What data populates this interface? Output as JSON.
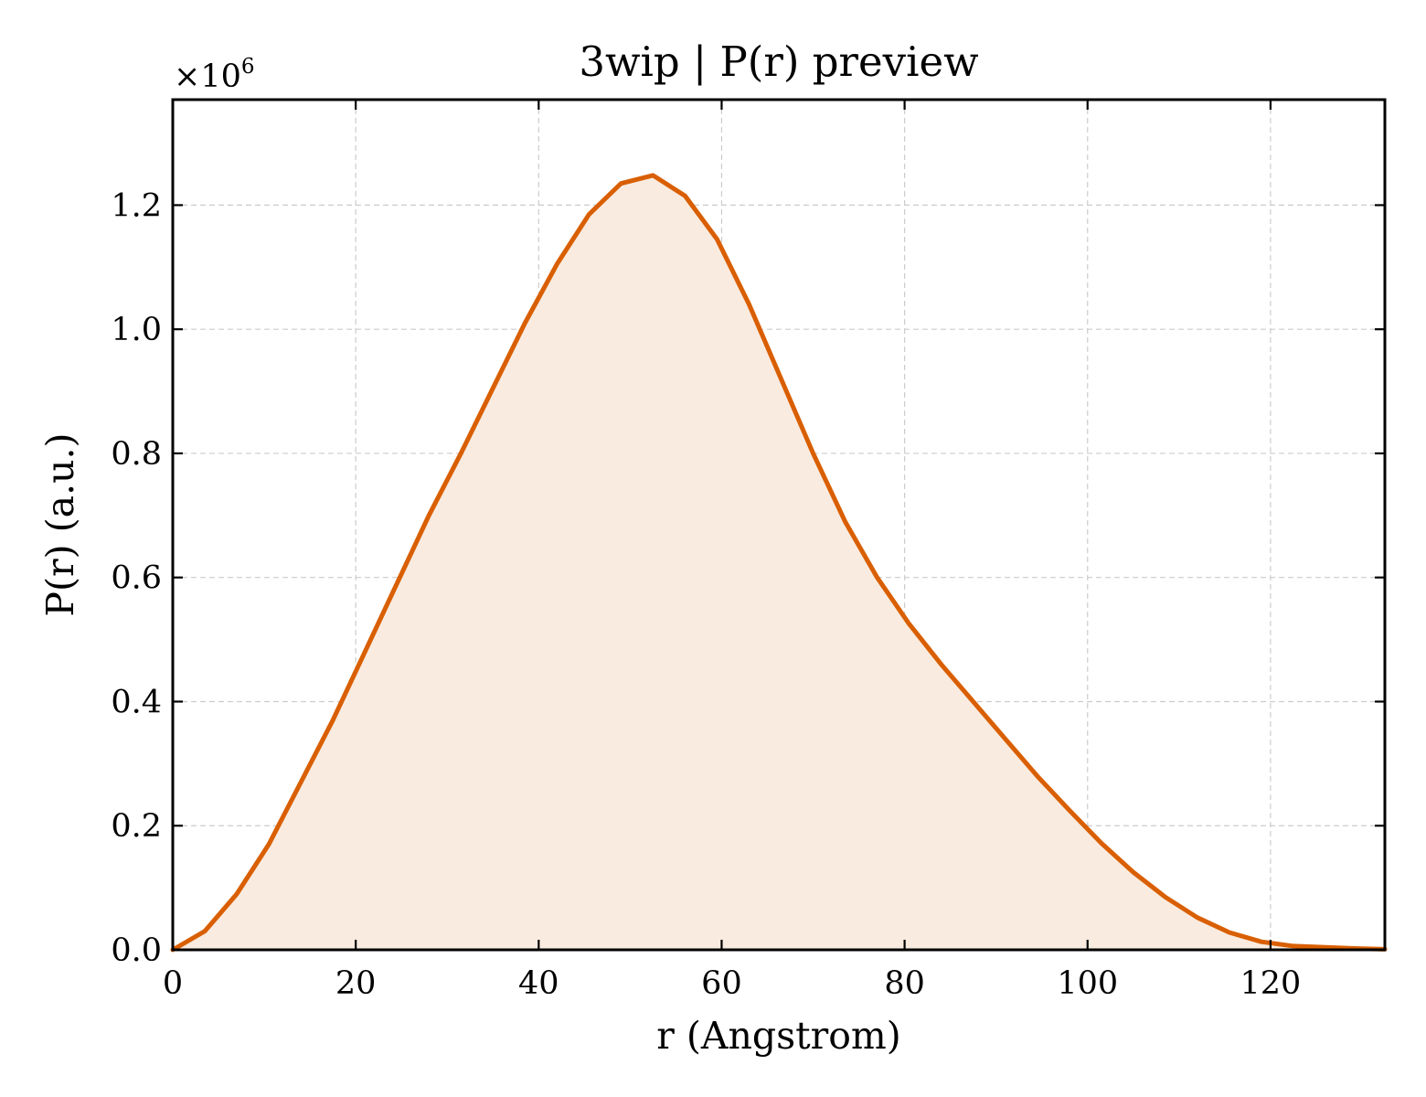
{
  "chart_data": {
    "type": "area",
    "title": "3wip | P(r) preview",
    "xlabel": "r (Angstrom)",
    "ylabel": "P(r) (a.u.)",
    "y_offset_label": {
      "base": "×10",
      "exponent": "6"
    },
    "xlim": [
      0,
      132.5
    ],
    "ylim": [
      0,
      1.37
    ],
    "y_scale_factor": 1000000,
    "x_ticks": [
      0,
      20,
      40,
      60,
      80,
      100,
      120
    ],
    "x_tick_labels": [
      "0",
      "20",
      "40",
      "60",
      "80",
      "100",
      "120"
    ],
    "y_ticks": [
      0.0,
      0.2,
      0.4,
      0.6,
      0.8,
      1.0,
      1.2
    ],
    "y_tick_labels": [
      "0.0",
      "0.2",
      "0.4",
      "0.6",
      "0.8",
      "1.0",
      "1.2"
    ],
    "grid": true,
    "colors": {
      "line": "#d95f02",
      "fill": "#f9ebe0"
    },
    "series": [
      {
        "x": [
          0,
          3.5,
          7.0,
          10.5,
          14.0,
          17.5,
          21.0,
          24.5,
          28.0,
          31.5,
          35.0,
          38.5,
          42.0,
          45.5,
          49.0,
          52.5,
          56.0,
          59.5,
          63.0,
          66.5,
          70.0,
          73.5,
          77.0,
          80.5,
          84.0,
          87.5,
          91.0,
          94.5,
          98.0,
          101.5,
          105.0,
          108.5,
          112.0,
          115.5,
          119.0,
          122.5,
          126.0,
          129.5,
          132.5
        ],
        "y": [
          0.0,
          0.03,
          0.09,
          0.17,
          0.27,
          0.37,
          0.48,
          0.59,
          0.7,
          0.8,
          0.905,
          1.01,
          1.105,
          1.185,
          1.235,
          1.248,
          1.215,
          1.145,
          1.04,
          0.92,
          0.8,
          0.69,
          0.6,
          0.525,
          0.46,
          0.4,
          0.34,
          0.28,
          0.225,
          0.172,
          0.125,
          0.085,
          0.052,
          0.028,
          0.013,
          0.006,
          0.004,
          0.002,
          0.001
        ]
      }
    ]
  }
}
